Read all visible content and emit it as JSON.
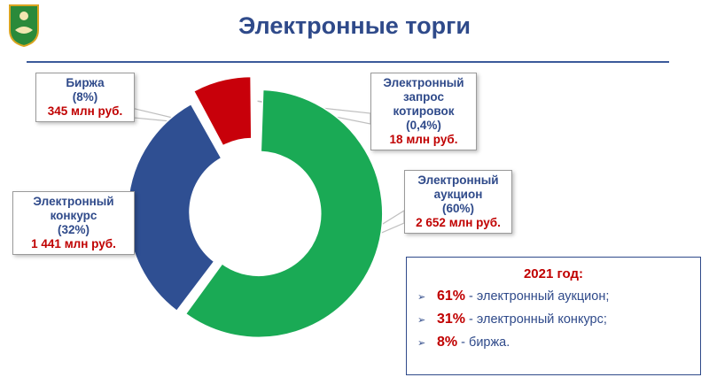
{
  "title": "Электронные торги",
  "colors": {
    "title": "#2f4a8a",
    "green": "#1aaa55",
    "blue": "#2f4f92",
    "red": "#c8000a",
    "orange": "#e6a21c",
    "accent_red": "#c00000"
  },
  "logo_icon": "coat-of-arms-icon",
  "chart_data": {
    "type": "pie",
    "variant": "donut",
    "slices": [
      {
        "name": "Электронный запрос котировок",
        "percent": 0.4,
        "amount_mln": 18,
        "color": "#e6a21c"
      },
      {
        "name": "Электронный аукцион",
        "percent": 60,
        "amount_mln": 2652,
        "color": "#1aaa55"
      },
      {
        "name": "Электронный конкурс",
        "percent": 32,
        "amount_mln": 1441,
        "color": "#2f4f92"
      },
      {
        "name": "Биржа",
        "percent": 8,
        "amount_mln": 345,
        "color": "#c8000a"
      }
    ]
  },
  "callouts": {
    "birzha": {
      "line1": "Биржа",
      "pct": "(8%)",
      "amount": "345 млн руб."
    },
    "zapros": {
      "line1": "Электронный",
      "line2": "запрос",
      "line3": "котировок",
      "pct": "(0,4%)",
      "amount": "18 млн руб."
    },
    "aukc": {
      "line1": "Электронный",
      "line2": "аукцион",
      "pct": "(60%)",
      "amount": "2 652 млн руб."
    },
    "konk": {
      "line1": "Электронный",
      "line2": "конкурс",
      "pct": "(32%)",
      "amount": "1 441 млн руб."
    }
  },
  "summary": {
    "heading": "2021 год:",
    "items": [
      {
        "pct": "61%",
        "text": " - электронный аукцион;"
      },
      {
        "pct": "31%",
        "text": " - электронный конкурс;"
      },
      {
        "pct": "8%",
        "text": " - биржа."
      }
    ]
  }
}
